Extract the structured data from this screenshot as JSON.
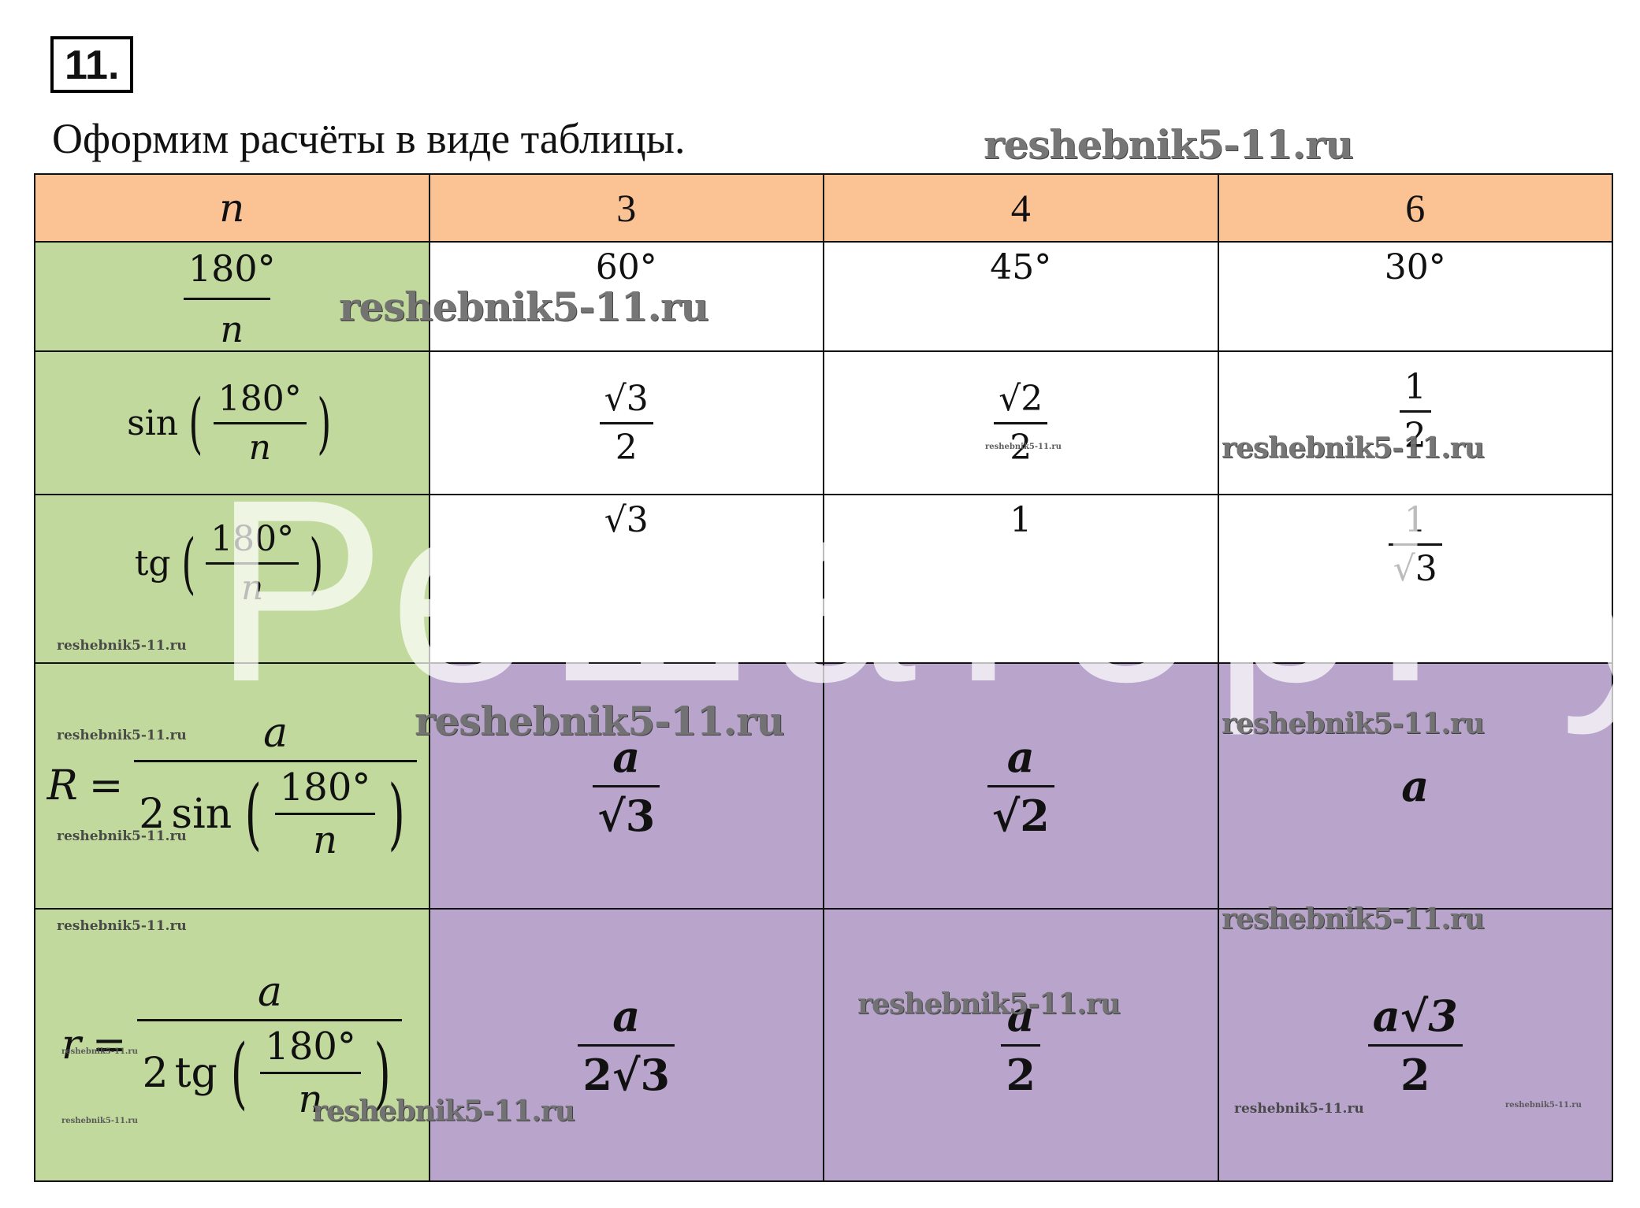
{
  "task": {
    "number": "11."
  },
  "intro": "Оформим расчёты в виде таблицы.",
  "watermark": {
    "site": "reshebnik5-11.ru",
    "ghost_text": "РешаторРу"
  },
  "colors": {
    "header": "#fbc293",
    "label_column": "#c1d99c",
    "result_cells": "#b9a4cc",
    "table_border": "#111111"
  },
  "table": {
    "header": {
      "label": "n",
      "values": [
        "3",
        "4",
        "6"
      ]
    },
    "rows": [
      {
        "label": {
          "num": "180°",
          "den": "n"
        },
        "values": [
          "60°",
          "45°",
          "30°"
        ]
      },
      {
        "label": {
          "func": "sin",
          "num": "180°",
          "den": "n"
        },
        "values": [
          {
            "num": "√3",
            "den": "2"
          },
          {
            "num": "√2",
            "den": "2"
          },
          {
            "num": "1",
            "den": "2"
          }
        ]
      },
      {
        "label": {
          "func": "tg",
          "num": "180°",
          "den": "n"
        },
        "values": [
          "√3",
          "1",
          {
            "num": "1",
            "den": "√3"
          }
        ]
      },
      {
        "label": {
          "lhs": "R",
          "eq": "=",
          "num": "a",
          "den_coef": "2",
          "den_func": "sin",
          "den_num": "180°",
          "den_den": "n"
        },
        "values": [
          {
            "num": "a",
            "den": "√3"
          },
          {
            "num": "a",
            "den": "√2"
          },
          "a"
        ]
      },
      {
        "label": {
          "lhs": "r",
          "eq": "=",
          "num": "a",
          "den_coef": "2",
          "den_func": "tg",
          "den_num": "180°",
          "den_den": "n"
        },
        "values": [
          {
            "num": "a",
            "den": "2√3"
          },
          {
            "num": "a",
            "den": "2"
          },
          {
            "num": "a√3",
            "den": "2"
          }
        ]
      }
    ]
  }
}
